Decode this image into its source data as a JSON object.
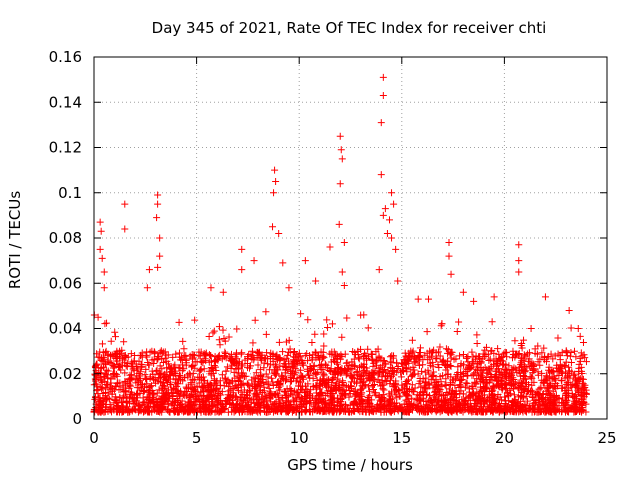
{
  "chart_data": {
    "type": "scatter",
    "title": "Day 345 of 2021, Rate Of TEC Index for receiver chti",
    "xlabel": "GPS time / hours",
    "ylabel": "ROTI / TECUs",
    "xlim": [
      0,
      25
    ],
    "ylim": [
      0,
      0.16
    ],
    "x_ticks": [
      0,
      5,
      10,
      15,
      20,
      25
    ],
    "x_tick_labels": [
      "0",
      "5",
      "10",
      "15",
      "20",
      "25"
    ],
    "y_ticks": [
      0,
      0.02,
      0.04,
      0.06,
      0.08,
      0.1,
      0.12,
      0.14,
      0.16
    ],
    "y_tick_labels": [
      "0",
      "0.02",
      "0.04",
      "0.06",
      "0.08",
      "0.1",
      "0.12",
      "0.14",
      "0.16"
    ],
    "grid": true,
    "marker": "+",
    "marker_color": "#ff0000",
    "data_time_range_hours": [
      0,
      24
    ],
    "baseline_range": [
      0.003,
      0.03
    ],
    "series": [
      {
        "name": "ROTI",
        "notable_points": [
          {
            "x": 0.3,
            "y": 0.087
          },
          {
            "x": 0.35,
            "y": 0.083
          },
          {
            "x": 0.3,
            "y": 0.075
          },
          {
            "x": 0.4,
            "y": 0.071
          },
          {
            "x": 0.5,
            "y": 0.065
          },
          {
            "x": 0.5,
            "y": 0.058
          },
          {
            "x": 0.2,
            "y": 0.045
          },
          {
            "x": 1.5,
            "y": 0.095
          },
          {
            "x": 1.5,
            "y": 0.084
          },
          {
            "x": 2.7,
            "y": 0.066
          },
          {
            "x": 2.6,
            "y": 0.058
          },
          {
            "x": 3.1,
            "y": 0.099
          },
          {
            "x": 3.1,
            "y": 0.095
          },
          {
            "x": 3.05,
            "y": 0.089
          },
          {
            "x": 3.2,
            "y": 0.08
          },
          {
            "x": 3.2,
            "y": 0.072
          },
          {
            "x": 3.1,
            "y": 0.067
          },
          {
            "x": 5.7,
            "y": 0.058
          },
          {
            "x": 6.3,
            "y": 0.056
          },
          {
            "x": 7.2,
            "y": 0.075
          },
          {
            "x": 7.2,
            "y": 0.066
          },
          {
            "x": 7.8,
            "y": 0.07
          },
          {
            "x": 8.8,
            "y": 0.11
          },
          {
            "x": 8.85,
            "y": 0.105
          },
          {
            "x": 8.75,
            "y": 0.1
          },
          {
            "x": 8.7,
            "y": 0.085
          },
          {
            "x": 9.0,
            "y": 0.082
          },
          {
            "x": 9.2,
            "y": 0.069
          },
          {
            "x": 9.5,
            "y": 0.058
          },
          {
            "x": 10.3,
            "y": 0.07
          },
          {
            "x": 10.8,
            "y": 0.061
          },
          {
            "x": 11.5,
            "y": 0.076
          },
          {
            "x": 12.0,
            "y": 0.125
          },
          {
            "x": 12.05,
            "y": 0.119
          },
          {
            "x": 12.1,
            "y": 0.115
          },
          {
            "x": 12.0,
            "y": 0.104
          },
          {
            "x": 11.95,
            "y": 0.086
          },
          {
            "x": 12.2,
            "y": 0.078
          },
          {
            "x": 12.1,
            "y": 0.065
          },
          {
            "x": 12.2,
            "y": 0.059
          },
          {
            "x": 14.1,
            "y": 0.151
          },
          {
            "x": 14.1,
            "y": 0.143
          },
          {
            "x": 14.0,
            "y": 0.131
          },
          {
            "x": 14.0,
            "y": 0.108
          },
          {
            "x": 14.2,
            "y": 0.093
          },
          {
            "x": 14.1,
            "y": 0.09
          },
          {
            "x": 14.5,
            "y": 0.1
          },
          {
            "x": 14.6,
            "y": 0.095
          },
          {
            "x": 14.4,
            "y": 0.088
          },
          {
            "x": 14.3,
            "y": 0.082
          },
          {
            "x": 14.5,
            "y": 0.08
          },
          {
            "x": 14.7,
            "y": 0.075
          },
          {
            "x": 13.9,
            "y": 0.066
          },
          {
            "x": 14.8,
            "y": 0.061
          },
          {
            "x": 17.3,
            "y": 0.078
          },
          {
            "x": 17.3,
            "y": 0.072
          },
          {
            "x": 17.4,
            "y": 0.064
          },
          {
            "x": 18.0,
            "y": 0.056
          },
          {
            "x": 18.5,
            "y": 0.052
          },
          {
            "x": 20.7,
            "y": 0.077
          },
          {
            "x": 20.7,
            "y": 0.07
          },
          {
            "x": 20.7,
            "y": 0.065
          },
          {
            "x": 21.3,
            "y": 0.04
          },
          {
            "x": 22.0,
            "y": 0.054
          },
          {
            "x": 23.6,
            "y": 0.04
          },
          {
            "x": 15.8,
            "y": 0.053
          },
          {
            "x": 16.3,
            "y": 0.053
          },
          {
            "x": 19.5,
            "y": 0.054
          }
        ]
      }
    ]
  }
}
